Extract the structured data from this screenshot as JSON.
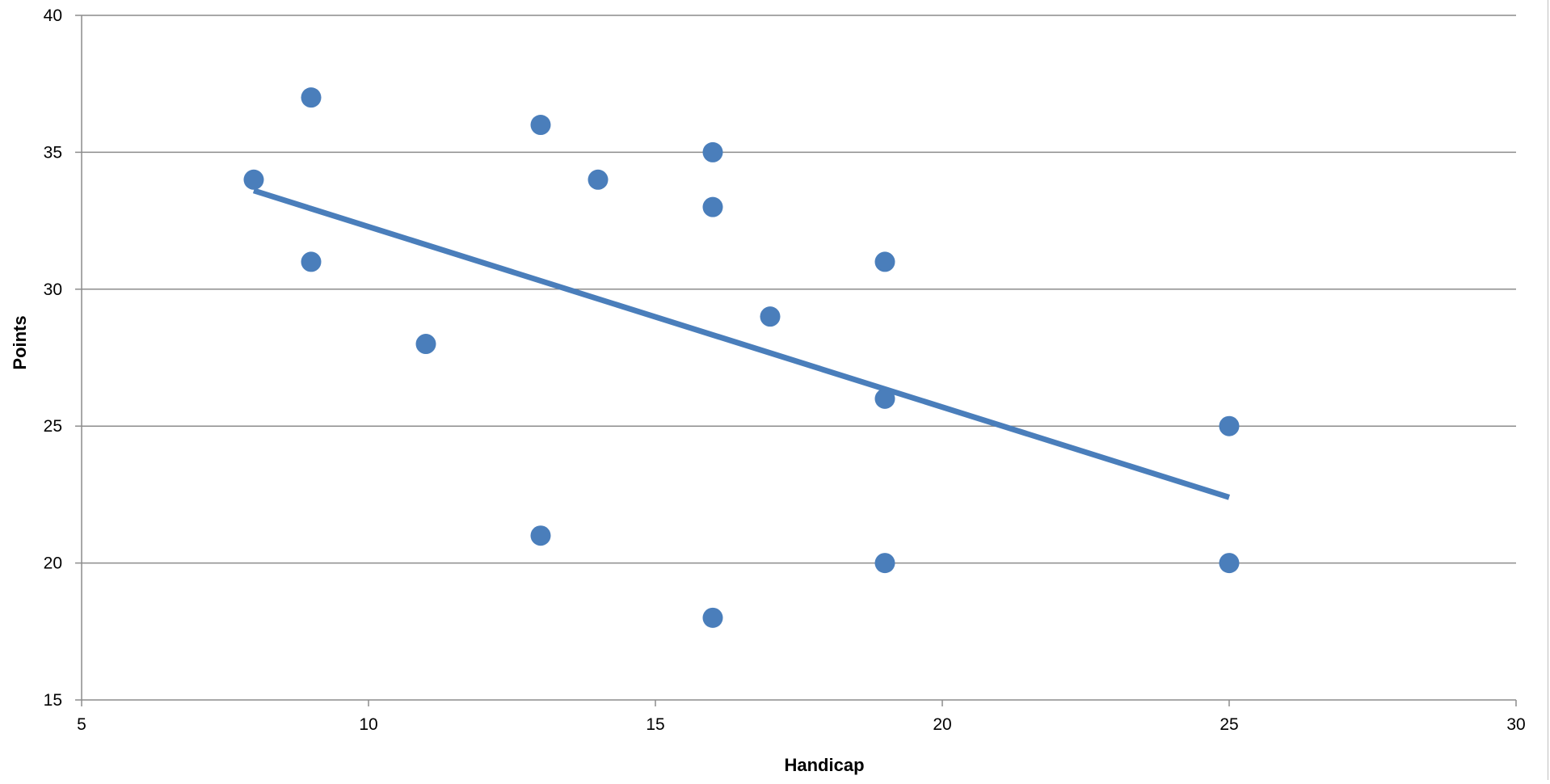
{
  "colors": {
    "marker": "#4a7ebb",
    "trendline": "#4a7ebb",
    "gridline": "#8c8c8c",
    "axis": "#8c8c8c",
    "text": "#000000",
    "background": "#ffffff"
  },
  "chart_data": {
    "type": "scatter",
    "title": "",
    "xlabel": "Handicap",
    "ylabel": "Points",
    "xlim": [
      5,
      30
    ],
    "ylim": [
      15,
      40
    ],
    "x_ticks": [
      5,
      10,
      15,
      20,
      25,
      30
    ],
    "y_ticks": [
      15,
      20,
      25,
      30,
      35,
      40
    ],
    "grid": {
      "horizontal": true,
      "vertical": false
    },
    "legend": "none",
    "series": [
      {
        "points": [
          {
            "x": 8,
            "y": 34
          },
          {
            "x": 9,
            "y": 37
          },
          {
            "x": 9,
            "y": 31
          },
          {
            "x": 11,
            "y": 28
          },
          {
            "x": 13,
            "y": 36
          },
          {
            "x": 13,
            "y": 21
          },
          {
            "x": 14,
            "y": 34
          },
          {
            "x": 16,
            "y": 35
          },
          {
            "x": 16,
            "y": 33
          },
          {
            "x": 16,
            "y": 18
          },
          {
            "x": 17,
            "y": 29
          },
          {
            "x": 19,
            "y": 31
          },
          {
            "x": 19,
            "y": 26
          },
          {
            "x": 19,
            "y": 20
          },
          {
            "x": 25,
            "y": 25
          },
          {
            "x": 25,
            "y": 20
          }
        ]
      }
    ],
    "trendline": {
      "type": "linear",
      "x_start": 8,
      "y_start": 33.6,
      "x_end": 25,
      "y_end": 22.4
    }
  }
}
